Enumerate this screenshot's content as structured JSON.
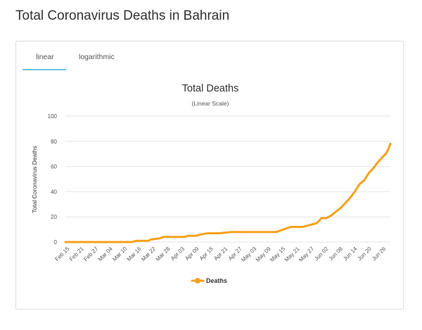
{
  "page": {
    "title": "Total Coronavirus Deaths in Bahrain"
  },
  "tabs": [
    {
      "label": "linear",
      "active": true
    },
    {
      "label": "logarithmic",
      "active": false
    }
  ],
  "colors": {
    "series": "#f5a21b",
    "tab_active": "#6ac5e6",
    "grid": "#e6e6e6"
  },
  "chart_data": {
    "type": "line",
    "title": "Total Deaths",
    "subtitle": "(Linear Scale)",
    "xlabel": "",
    "ylabel": "Total Coronavirus Deaths",
    "ylim": [
      0,
      100
    ],
    "yticks": [
      0,
      20,
      40,
      60,
      80,
      100
    ],
    "xticks": [
      "Feb 15",
      "Feb 21",
      "Feb 27",
      "Mar 04",
      "Mar 10",
      "Mar 16",
      "Mar 22",
      "Mar 28",
      "Apr 03",
      "Apr 09",
      "Apr 15",
      "Apr 21",
      "Apr 27",
      "May 03",
      "May 09",
      "May 15",
      "May 21",
      "May 27",
      "Jun 02",
      "Jun 08",
      "Jun 14",
      "Jun 20",
      "Jun 26"
    ],
    "legend": "bottom-center",
    "grid": true,
    "series": [
      {
        "name": "Deaths",
        "x": [
          0,
          28,
          30,
          35,
          36,
          40,
          41,
          43,
          50,
          52,
          55,
          57,
          60,
          65,
          70,
          75,
          80,
          83,
          86,
          89,
          92,
          95,
          98,
          100,
          102,
          104,
          106,
          108,
          110,
          112,
          114,
          116,
          118,
          120,
          122,
          124,
          126,
          128,
          130,
          132,
          134,
          135,
          136,
          137
        ],
        "values": [
          0,
          0,
          1,
          1,
          2,
          3,
          4,
          4,
          4,
          5,
          5,
          6,
          7,
          7,
          8,
          8,
          8,
          8,
          8,
          8,
          10,
          12,
          12,
          12,
          13,
          14,
          15,
          19,
          19,
          21,
          24,
          27,
          31,
          35,
          40,
          46,
          49,
          55,
          59,
          64,
          68,
          70,
          73,
          78
        ]
      }
    ]
  }
}
